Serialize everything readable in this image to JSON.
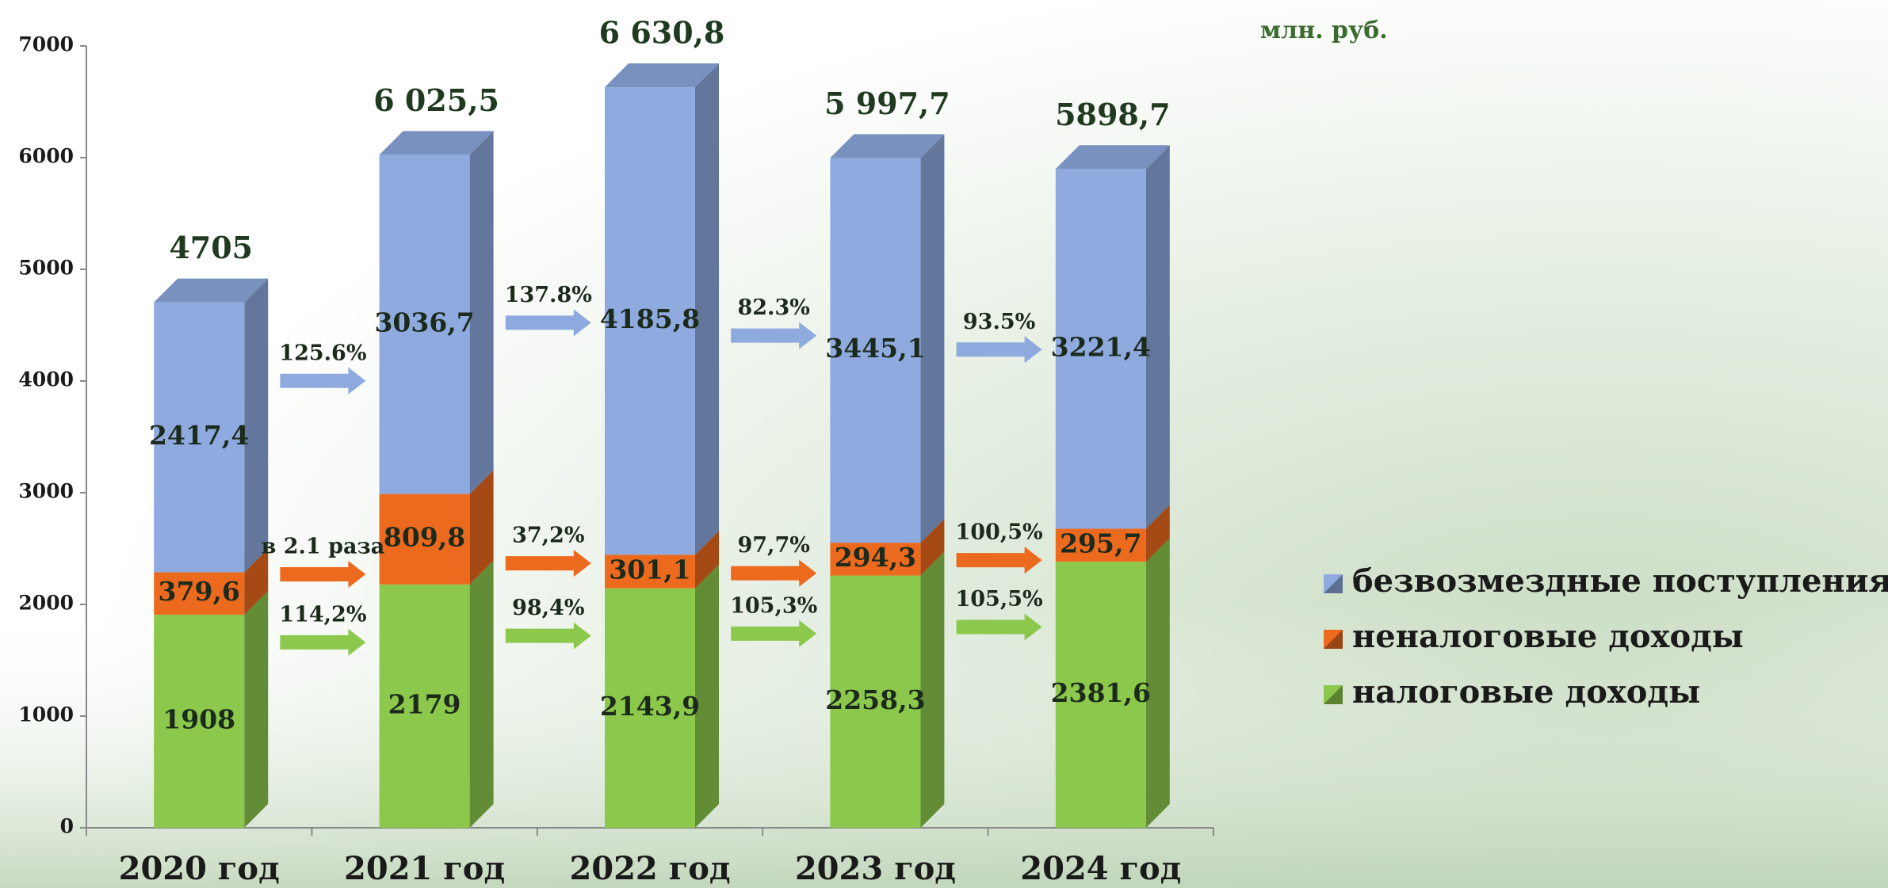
{
  "chart_data": {
    "type": "stacked-bar-3d",
    "unit": "млн. руб.",
    "categories": [
      "2020 год",
      "2021 год",
      "2022 год",
      "2023 год",
      "2024 год"
    ],
    "series": [
      {
        "name": "налоговые доходы",
        "color": "#8cc84b",
        "values": [
          1908,
          2179,
          2143.9,
          2258.3,
          2381.6
        ],
        "value_labels": [
          "1908",
          "2179",
          "2143,9",
          "2258,3",
          "2381,6"
        ],
        "growth_labels": [
          "114,2%",
          "98,4%",
          "105,3%",
          "105,5%"
        ]
      },
      {
        "name": "неналоговые доходы",
        "color": "#ec6a1e",
        "values": [
          379.6,
          809.8,
          301.1,
          294.3,
          295.7
        ],
        "value_labels": [
          "379,6",
          "809,8",
          "301,1",
          "294,3",
          "295,7"
        ],
        "growth_labels": [
          "в 2.1 раза",
          "37,2%",
          "97,7%",
          "100,5%"
        ]
      },
      {
        "name": "безвозмездные поступления",
        "color": "#8eaadf",
        "values": [
          2417.4,
          3036.7,
          4185.8,
          3445.1,
          3221.4
        ],
        "value_labels": [
          "2417,4",
          "3036,7",
          "4185,8",
          "3445,1",
          "3221,4"
        ],
        "growth_labels": [
          "125.6%",
          "137.8%",
          "82.3%",
          "93.5%"
        ]
      }
    ],
    "totals": [
      4705,
      6025.5,
      6630.8,
      5997.7,
      5898.7
    ],
    "total_labels": [
      "4705",
      "6 025,5",
      "6 630,8",
      "5 997,7",
      "5898,7"
    ],
    "ylim": [
      0,
      7000
    ],
    "yticks": [
      0,
      1000,
      2000,
      3000,
      4000,
      5000,
      6000,
      7000
    ],
    "legend": "right"
  }
}
